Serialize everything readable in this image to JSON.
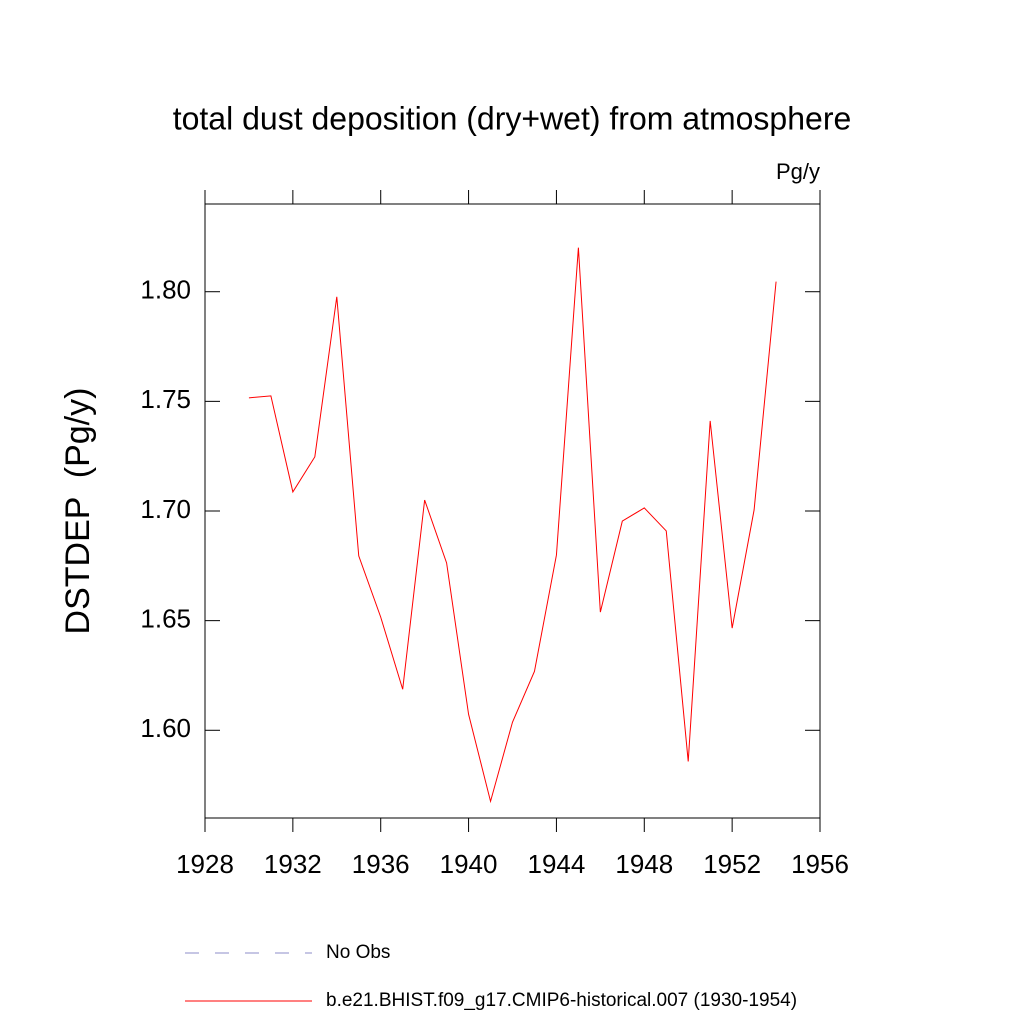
{
  "chart_data": {
    "type": "line",
    "title": "total dust deposition (dry+wet) from atmosphere",
    "units": "Pg/y",
    "y_label": "DSTDEP  (Pg/y)",
    "x": [
      1930,
      1931,
      1932,
      1933,
      1934,
      1935,
      1936,
      1937,
      1938,
      1939,
      1940,
      1941,
      1942,
      1943,
      1944,
      1945,
      1946,
      1947,
      1948,
      1949,
      1950,
      1951,
      1952,
      1953,
      1954
    ],
    "series": [
      {
        "name": "b.e21.BHIST.f09_g17.CMIP6-historical.007 (1930-1954)",
        "color": "#ff0000",
        "values": [
          1.7516,
          1.7525,
          1.7087,
          1.7247,
          1.7977,
          1.6795,
          1.6516,
          1.6187,
          1.705,
          1.6763,
          1.6073,
          1.5676,
          1.6037,
          1.6269,
          1.6799,
          1.8201,
          1.6539,
          1.6954,
          1.7014,
          1.6909,
          1.5858,
          1.7411,
          1.6466,
          1.7005,
          1.8046
        ]
      }
    ],
    "extra_legend": {
      "name": "No Obs",
      "color": "#8c8cc8",
      "dashed": true
    },
    "xlim": [
      1928,
      1956
    ],
    "xticks": [
      1928,
      1932,
      1936,
      1940,
      1944,
      1948,
      1952,
      1956
    ],
    "ylim": [
      1.56,
      1.84
    ],
    "yticks": [
      {
        "value": 1.6,
        "label": "1.60"
      },
      {
        "value": 1.65,
        "label": "1.65"
      },
      {
        "value": 1.7,
        "label": "1.70"
      },
      {
        "value": 1.75,
        "label": "1.75"
      },
      {
        "value": 1.8,
        "label": "1.80"
      }
    ],
    "grid": false
  }
}
